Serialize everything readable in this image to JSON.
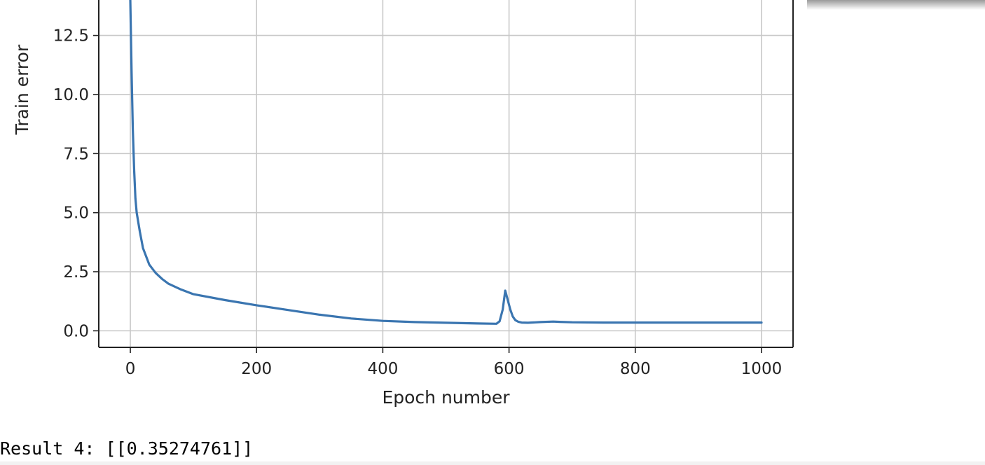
{
  "chart_data": {
    "type": "line",
    "title": "",
    "xlabel": "Epoch number",
    "ylabel": "Train error",
    "xlim": [
      -50,
      1050
    ],
    "ylim": [
      -0.7,
      14.0
    ],
    "grid": true,
    "x_ticks": [
      0,
      200,
      400,
      600,
      800,
      1000
    ],
    "y_ticks": [
      0.0,
      2.5,
      5.0,
      7.5,
      10.0,
      12.5
    ],
    "x_tick_labels": [
      "0",
      "200",
      "400",
      "600",
      "800",
      "1000"
    ],
    "y_tick_labels": [
      "0.0",
      "2.5",
      "5.0",
      "7.5",
      "10.0",
      "12.5"
    ],
    "series": [
      {
        "color": "#3a75b0",
        "x": [
          0,
          2,
          4,
          6,
          8,
          10,
          15,
          20,
          30,
          40,
          50,
          60,
          80,
          100,
          150,
          200,
          250,
          300,
          350,
          400,
          450,
          500,
          550,
          580,
          585,
          590,
          594,
          598,
          602,
          606,
          610,
          615,
          620,
          630,
          650,
          670,
          680,
          700,
          750,
          800,
          850,
          900,
          950,
          1000
        ],
        "y": [
          14.0,
          11.0,
          8.5,
          6.8,
          5.6,
          5.0,
          4.2,
          3.5,
          2.8,
          2.45,
          2.2,
          2.0,
          1.75,
          1.55,
          1.3,
          1.08,
          0.88,
          0.68,
          0.52,
          0.42,
          0.37,
          0.34,
          0.31,
          0.3,
          0.4,
          0.9,
          1.7,
          1.3,
          0.9,
          0.6,
          0.45,
          0.38,
          0.35,
          0.34,
          0.37,
          0.39,
          0.38,
          0.36,
          0.35,
          0.35,
          0.35,
          0.35,
          0.35,
          0.35
        ]
      }
    ]
  },
  "output": {
    "result_text": "Result 4: [[0.35274761]]"
  }
}
